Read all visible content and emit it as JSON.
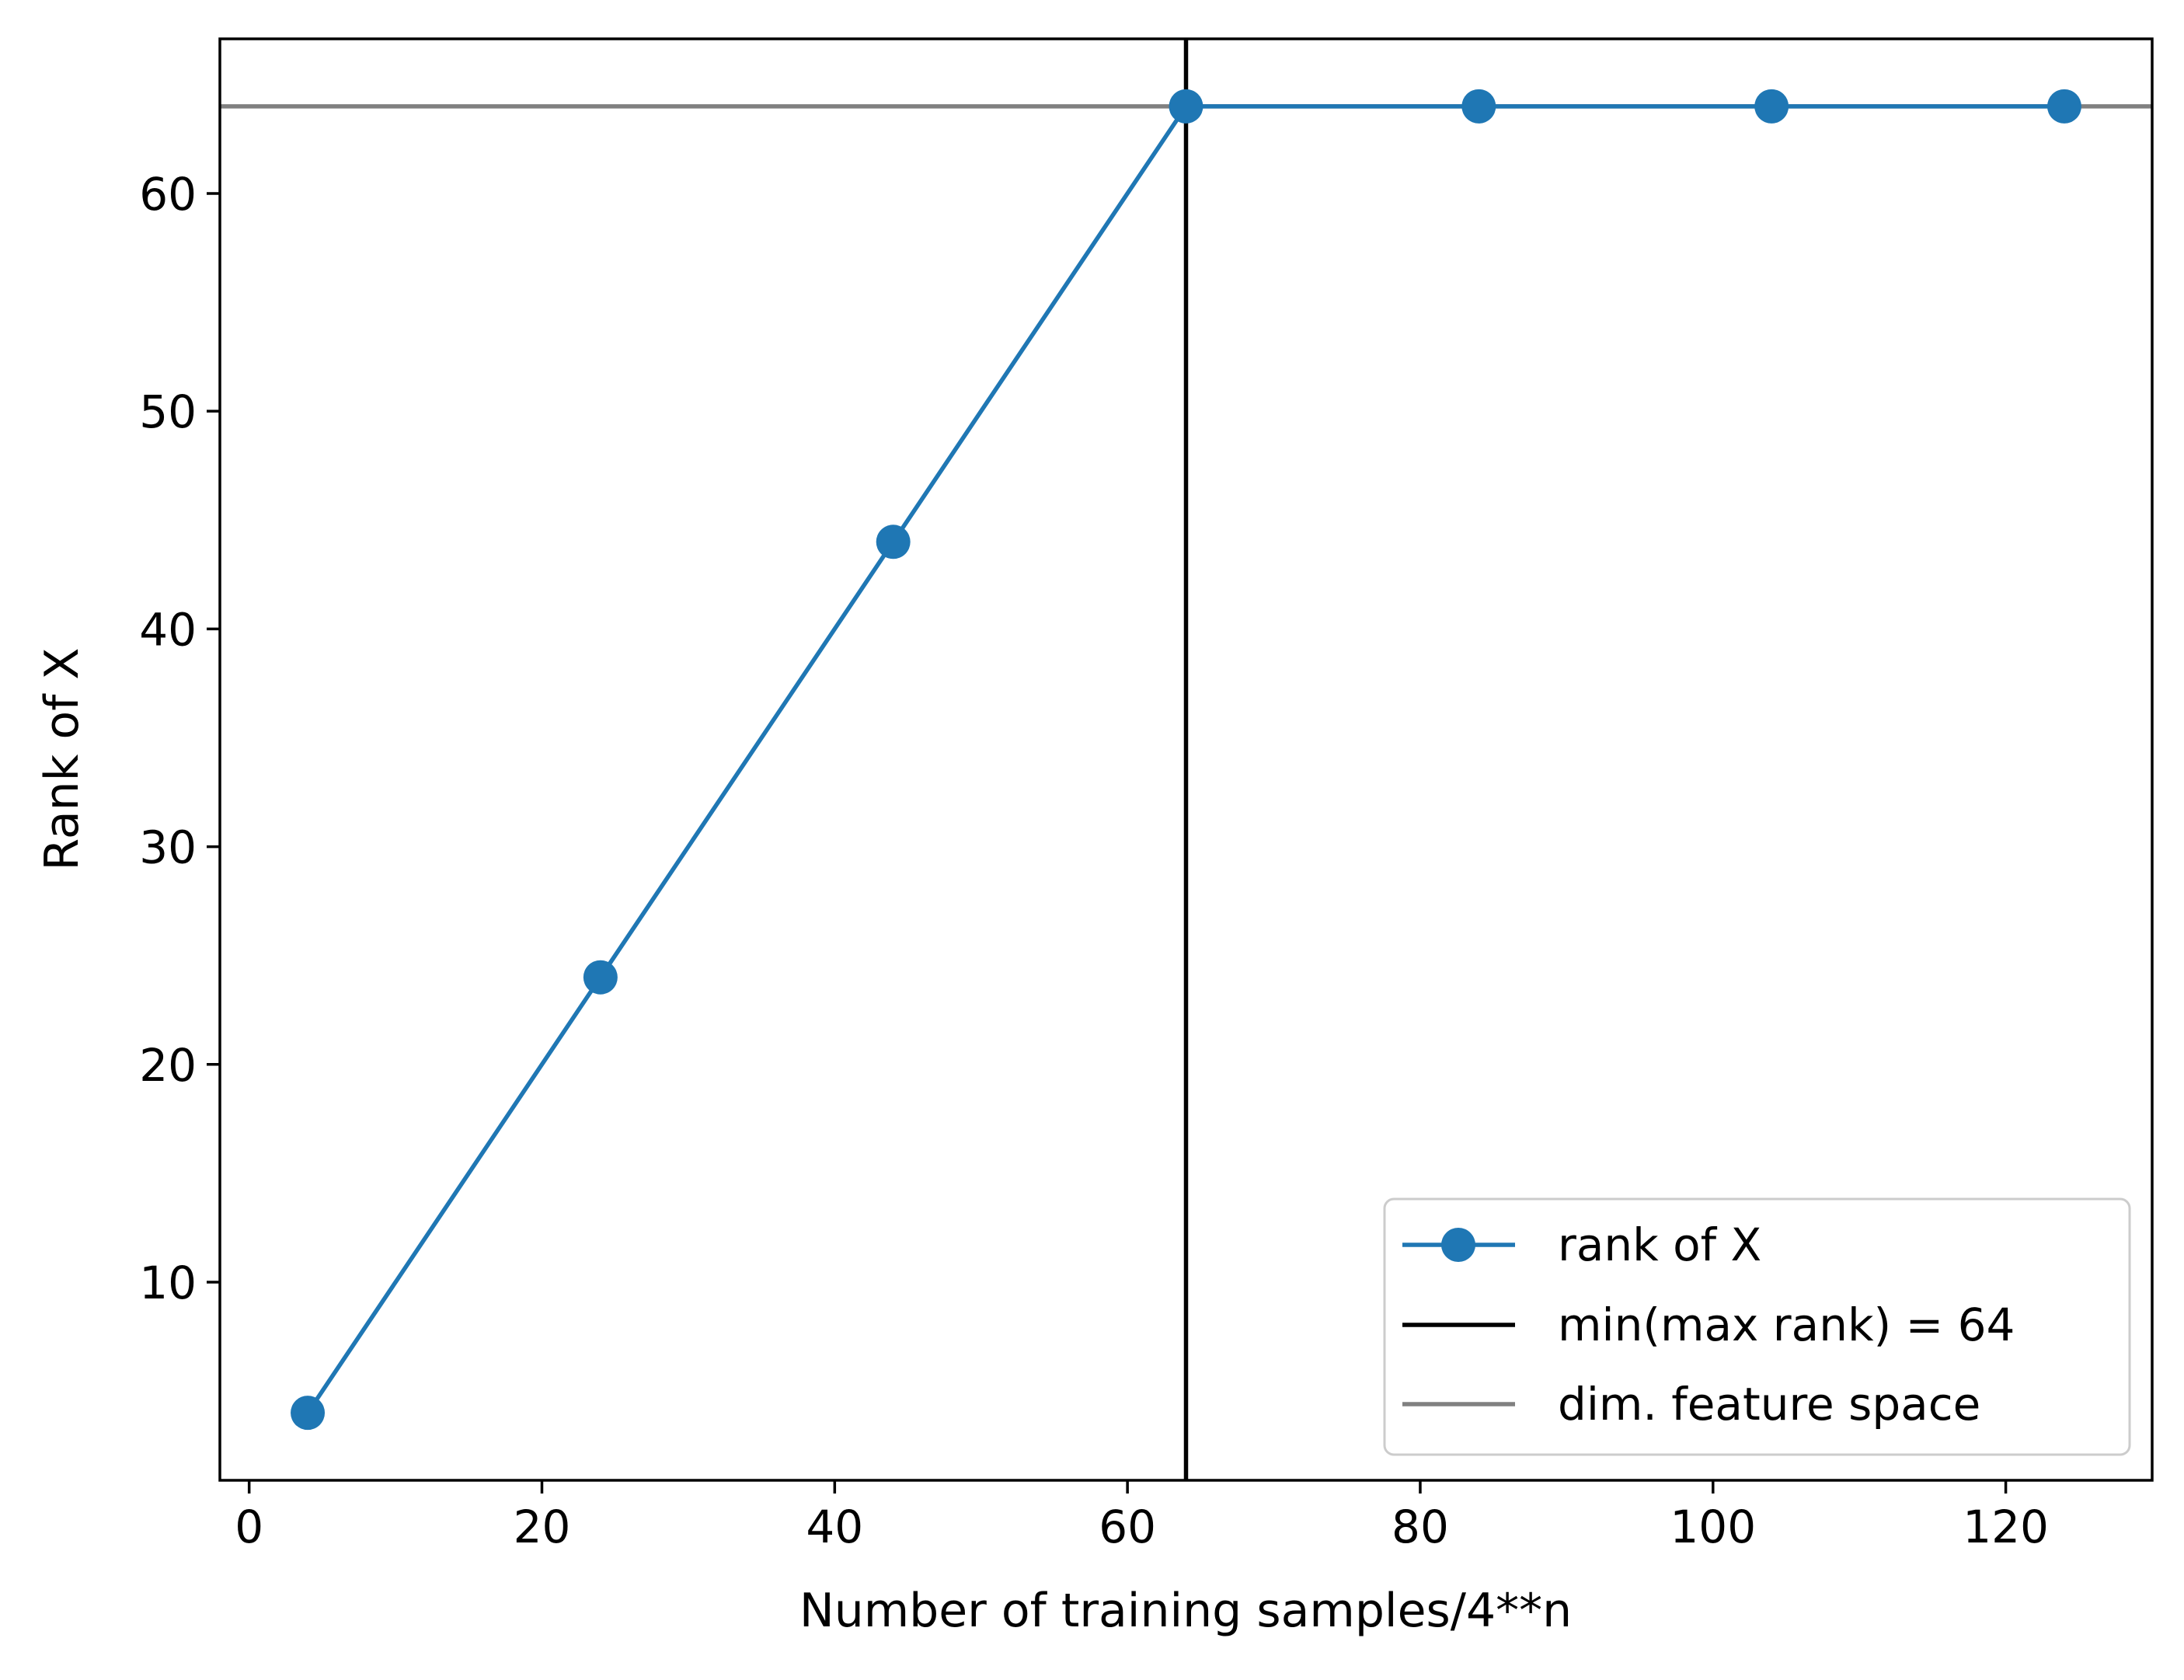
{
  "chart_data": {
    "type": "line",
    "title": "",
    "xlabel": "Number of training samples/4**n",
    "ylabel": "Rank of X",
    "xlim": [
      -2.0,
      130.0
    ],
    "ylim": [
      0.9,
      67.1
    ],
    "xticks": [
      0,
      20,
      40,
      60,
      80,
      100,
      120
    ],
    "yticks": [
      10,
      20,
      30,
      40,
      50,
      60
    ],
    "grid": false,
    "legend_position": "lower right",
    "series": [
      {
        "name": "rank of X",
        "kind": "line-with-markers",
        "color": "#1f77b4",
        "x": [
          4,
          24,
          44,
          64,
          84,
          104,
          124
        ],
        "y": [
          4,
          24,
          44,
          64,
          64,
          64,
          64
        ]
      }
    ],
    "reference_lines": [
      {
        "name": "min(max rank) = 64",
        "orientation": "vertical",
        "value": 64,
        "color": "#000000"
      },
      {
        "name": "dim. feature space",
        "orientation": "horizontal",
        "value": 64,
        "color": "#808080"
      }
    ]
  }
}
